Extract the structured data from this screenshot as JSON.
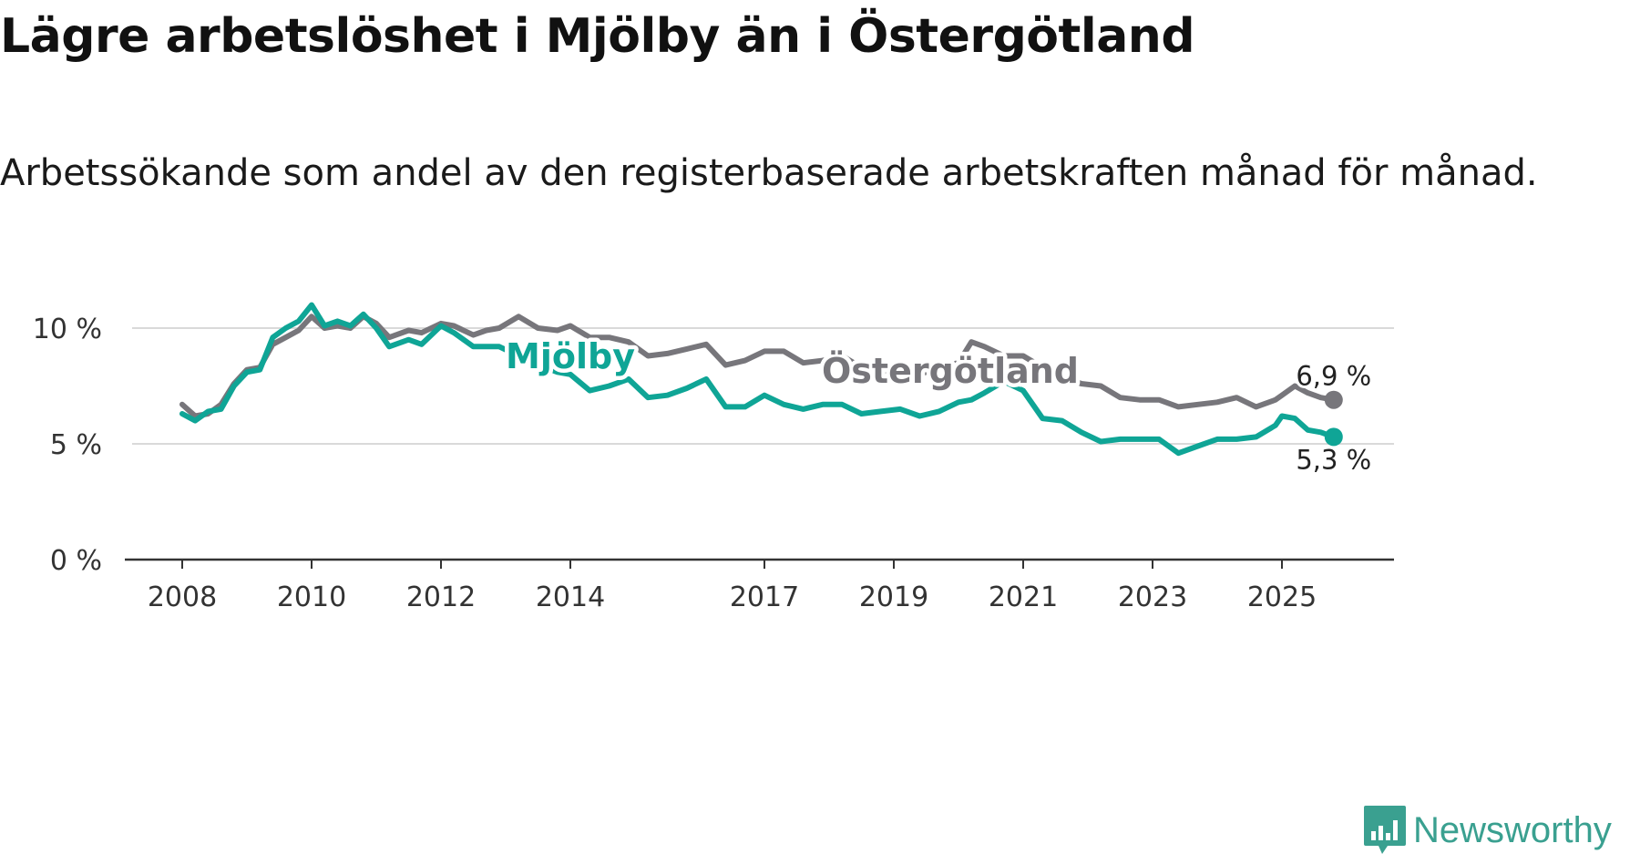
{
  "title": "Lägre arbetslöshet i Mjölby än i Östergötland",
  "subtitle": "Arbetssökande som andel av den registerbaserade arbetskraften månad för månad.",
  "brand": {
    "name": "Newsworthy",
    "icon": "newsworthy-logo-icon",
    "color": "#3aa090"
  },
  "chart_data": {
    "type": "line",
    "title": "Lägre arbetslöshet i Mjölby än i Östergötland",
    "xlabel": "",
    "ylabel": "",
    "xlim": [
      2008,
      2026.2
    ],
    "ylim": [
      0,
      10
    ],
    "y_ticks": [
      0,
      5,
      10
    ],
    "y_tick_labels": [
      "0 %",
      "5 %",
      "10 %"
    ],
    "x_ticks": [
      2008,
      2010,
      2012,
      2014,
      2017,
      2019,
      2021,
      2023,
      2025
    ],
    "x_tick_labels": [
      "2008",
      "2010",
      "2012",
      "2014",
      "2017",
      "2019",
      "2021",
      "2023",
      "2025"
    ],
    "grid": true,
    "series": [
      {
        "name": "Östergötland",
        "color": "#77767b",
        "end_label": "6,9 %",
        "x": [
          2008.0,
          2008.2,
          2008.4,
          2008.6,
          2008.8,
          2009.0,
          2009.2,
          2009.4,
          2009.6,
          2009.8,
          2010.0,
          2010.2,
          2010.4,
          2010.6,
          2010.8,
          2011.0,
          2011.2,
          2011.5,
          2011.7,
          2012.0,
          2012.2,
          2012.5,
          2012.7,
          2012.9,
          2013.2,
          2013.5,
          2013.8,
          2014.0,
          2014.3,
          2014.6,
          2014.9,
          2015.2,
          2015.5,
          2015.8,
          2016.1,
          2016.4,
          2016.7,
          2017.0,
          2017.3,
          2017.6,
          2017.9,
          2018.2,
          2018.5,
          2018.8,
          2019.1,
          2019.4,
          2019.7,
          2020.0,
          2020.2,
          2020.4,
          2020.7,
          2021.0,
          2021.3,
          2021.6,
          2021.9,
          2022.2,
          2022.5,
          2022.8,
          2023.1,
          2023.4,
          2023.7,
          2024.0,
          2024.3,
          2024.6,
          2024.9,
          2025.0,
          2025.2,
          2025.4,
          2025.6,
          2025.8
        ],
        "y": [
          6.7,
          6.2,
          6.3,
          6.7,
          7.6,
          8.2,
          8.3,
          9.3,
          9.6,
          9.9,
          10.5,
          10.0,
          10.1,
          10.0,
          10.5,
          10.2,
          9.6,
          9.9,
          9.8,
          10.2,
          10.1,
          9.7,
          9.9,
          10.0,
          10.5,
          10.0,
          9.9,
          10.1,
          9.6,
          9.6,
          9.4,
          8.8,
          8.9,
          9.1,
          9.3,
          8.4,
          8.6,
          9.0,
          9.0,
          8.5,
          8.6,
          8.8,
          8.3,
          8.1,
          8.3,
          8.0,
          8.3,
          8.5,
          9.4,
          9.2,
          8.8,
          8.8,
          8.3,
          7.9,
          7.6,
          7.5,
          7.0,
          6.9,
          6.9,
          6.6,
          6.7,
          6.8,
          7.0,
          6.6,
          6.9,
          7.1,
          7.5,
          7.2,
          7.0,
          6.9
        ]
      },
      {
        "name": "Mjölby",
        "color": "#0fa596",
        "end_label": "5,3 %",
        "x": [
          2008.0,
          2008.2,
          2008.4,
          2008.6,
          2008.8,
          2009.0,
          2009.2,
          2009.4,
          2009.6,
          2009.8,
          2010.0,
          2010.2,
          2010.4,
          2010.6,
          2010.8,
          2011.0,
          2011.2,
          2011.5,
          2011.7,
          2012.0,
          2012.2,
          2012.5,
          2012.7,
          2012.9,
          2013.2,
          2013.5,
          2013.8,
          2014.0,
          2014.3,
          2014.6,
          2014.9,
          2015.2,
          2015.5,
          2015.8,
          2016.1,
          2016.4,
          2016.7,
          2017.0,
          2017.3,
          2017.6,
          2017.9,
          2018.2,
          2018.5,
          2018.8,
          2019.1,
          2019.4,
          2019.7,
          2020.0,
          2020.2,
          2020.4,
          2020.7,
          2021.0,
          2021.3,
          2021.6,
          2021.9,
          2022.2,
          2022.5,
          2022.8,
          2023.1,
          2023.4,
          2023.7,
          2024.0,
          2024.3,
          2024.6,
          2024.9,
          2025.0,
          2025.2,
          2025.4,
          2025.6,
          2025.8
        ],
        "y": [
          6.3,
          6.0,
          6.4,
          6.5,
          7.5,
          8.1,
          8.2,
          9.6,
          10.0,
          10.3,
          11.0,
          10.1,
          10.3,
          10.1,
          10.6,
          10.0,
          9.2,
          9.5,
          9.3,
          10.1,
          9.8,
          9.2,
          9.2,
          9.2,
          8.8,
          8.4,
          8.1,
          8.0,
          7.3,
          7.5,
          7.8,
          7.0,
          7.1,
          7.4,
          7.8,
          6.6,
          6.6,
          7.1,
          6.7,
          6.5,
          6.7,
          6.7,
          6.3,
          6.4,
          6.5,
          6.2,
          6.4,
          6.8,
          6.9,
          7.2,
          7.7,
          7.3,
          6.1,
          6.0,
          5.5,
          5.1,
          5.2,
          5.2,
          5.2,
          4.6,
          4.9,
          5.2,
          5.2,
          5.3,
          5.8,
          6.2,
          6.1,
          5.6,
          5.5,
          5.3
        ]
      }
    ]
  }
}
